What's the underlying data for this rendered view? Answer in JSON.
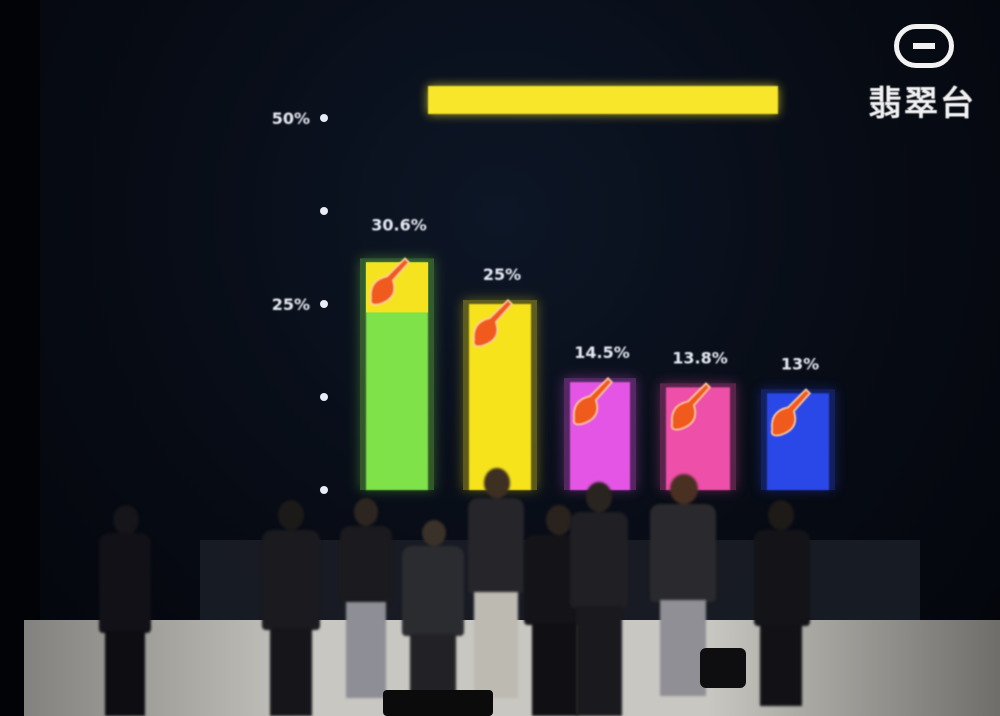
{
  "chart_data": {
    "type": "bar",
    "title": "",
    "categories": [
      "",
      "",
      "",
      "",
      ""
    ],
    "values": [
      30.6,
      25,
      14.5,
      13.8,
      13
    ],
    "data_labels": [
      "30.6%",
      "25%",
      "14.5%",
      "13.8%",
      "13%"
    ],
    "yticks": [
      "50%",
      "",
      "25%",
      "",
      ""
    ],
    "tick_values": [
      50,
      37.5,
      25,
      12.5,
      0
    ],
    "ylim": [
      0,
      50
    ],
    "xlabel": "",
    "ylabel": "",
    "grid": false,
    "legend": "none",
    "colors": [
      "#7fe24a",
      "#f6e31f",
      "#e455e6",
      "#ee4fa8",
      "#2a46e8"
    ]
  },
  "overlay": {
    "channel_logo_text": "翡翠台"
  },
  "colors": {
    "background": "#070b14",
    "title_bar": "#f7e62a",
    "axis": "#d8dde8",
    "floor": "#c9c7c1"
  }
}
